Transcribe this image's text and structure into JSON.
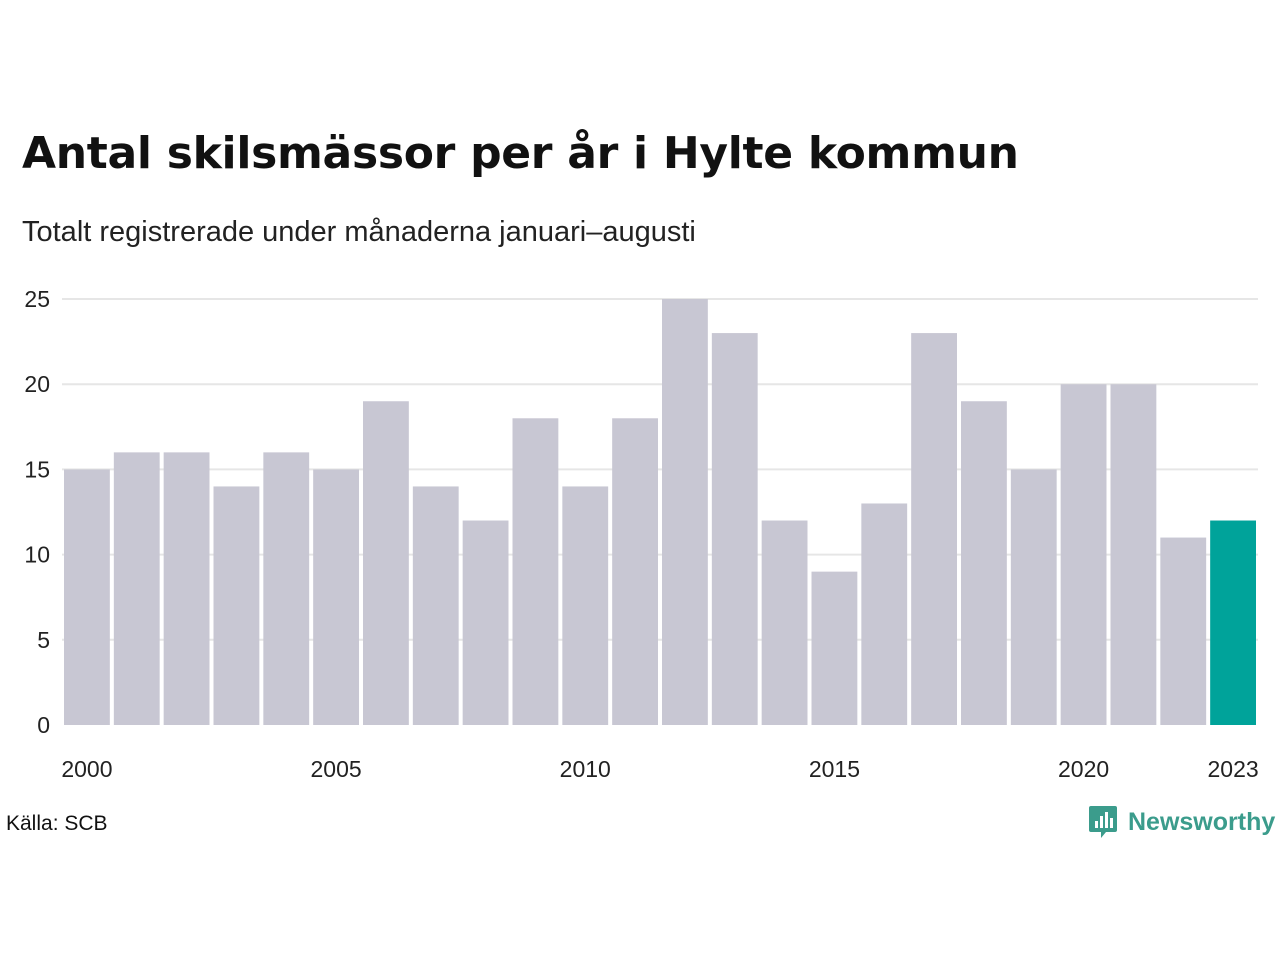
{
  "header": {
    "title": "Antal skilsmässor per år i Hylte kommun",
    "subtitle": "Totalt registrerade under månaderna januari–augusti"
  },
  "footer": {
    "source": "Källa: SCB",
    "brand": "Newsworthy"
  },
  "colors": {
    "bar": "#c8c7d3",
    "highlight": "#00a39a",
    "grid": "#e6e6e6",
    "brand": "#3b9c8c"
  },
  "icons": {
    "brand_logo": "newsworthy-logo-icon"
  },
  "chart_data": {
    "type": "bar",
    "categories": [
      2000,
      2001,
      2002,
      2003,
      2004,
      2005,
      2006,
      2007,
      2008,
      2009,
      2010,
      2011,
      2012,
      2013,
      2014,
      2015,
      2016,
      2017,
      2018,
      2019,
      2020,
      2021,
      2022,
      2023
    ],
    "values": [
      15,
      16,
      16,
      14,
      16,
      15,
      19,
      14,
      12,
      18,
      14,
      18,
      25,
      23,
      12,
      9,
      13,
      23,
      19,
      15,
      20,
      20,
      11,
      12
    ],
    "highlight_category": 2023,
    "x_tick_labels": [
      "2000",
      "2005",
      "2010",
      "2015",
      "2020",
      "2023"
    ],
    "y_ticks": [
      0,
      5,
      10,
      15,
      20,
      25
    ],
    "ylim": [
      0,
      25
    ],
    "grid": true,
    "legend": "none",
    "xlabel": "",
    "ylabel": ""
  }
}
